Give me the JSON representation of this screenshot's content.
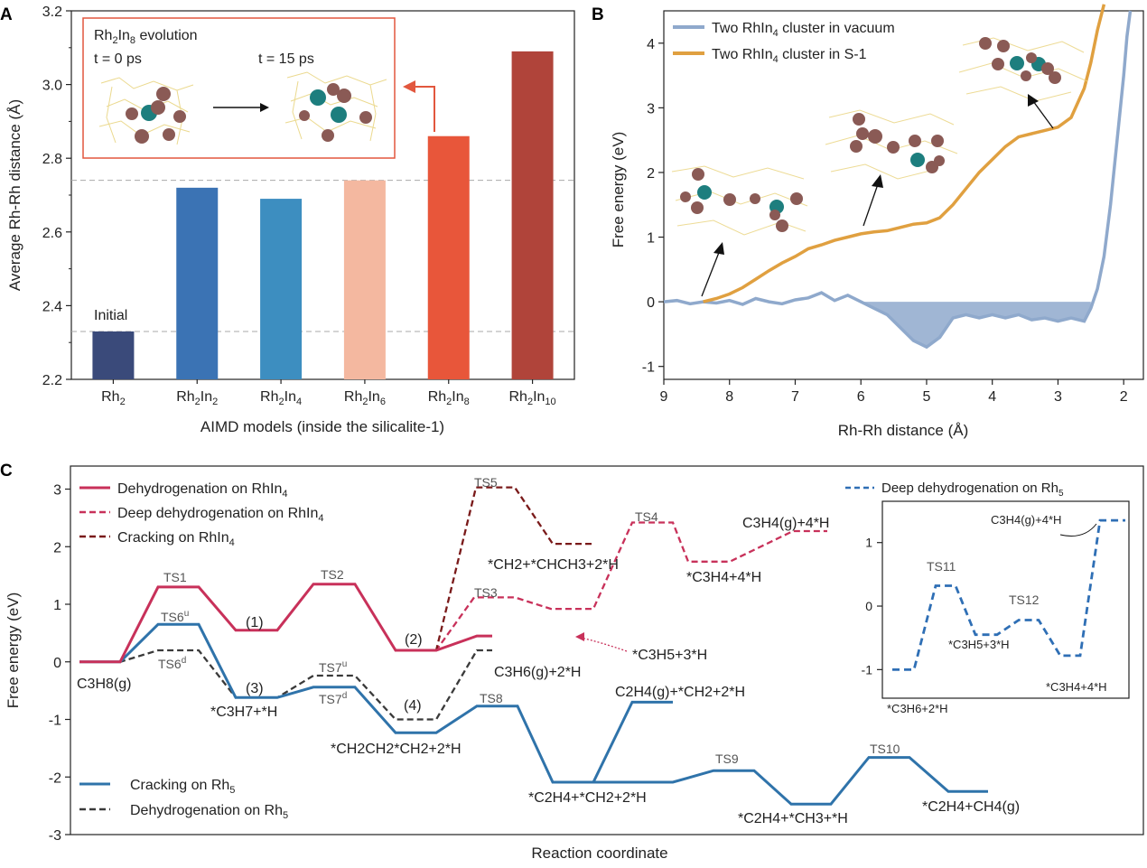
{
  "chart_data": [
    {
      "panel": "A",
      "type": "bar",
      "xlabel": "AIMD models (inside the silicalite-1)",
      "ylabel": "Average Rh-Rh distance (Å)",
      "ylim": [
        2.2,
        3.2
      ],
      "yticks": [
        "2.2",
        "2.4",
        "2.6",
        "2.8",
        "3.0",
        "3.2"
      ],
      "categories": [
        {
          "base": "Rh",
          "sub1": "2",
          "mid": "",
          "sub2": ""
        },
        {
          "base": "Rh",
          "sub1": "2",
          "mid": "In",
          "sub2": "2"
        },
        {
          "base": "Rh",
          "sub1": "2",
          "mid": "In",
          "sub2": "4"
        },
        {
          "base": "Rh",
          "sub1": "2",
          "mid": "In",
          "sub2": "6"
        },
        {
          "base": "Rh",
          "sub1": "2",
          "mid": "In",
          "sub2": "8"
        },
        {
          "base": "Rh",
          "sub1": "2",
          "mid": "In",
          "sub2": "10"
        }
      ],
      "values": [
        2.33,
        2.72,
        2.69,
        2.74,
        2.86,
        3.09
      ],
      "colors": [
        "#3a4a7a",
        "#3b73b4",
        "#3d8ec0",
        "#f4b8a0",
        "#e8563a",
        "#b0443a"
      ],
      "reference_lines": [
        2.33,
        2.74
      ],
      "bar_annotation": "Initial",
      "inset": {
        "title_base": "Rh",
        "title_sub1": "2",
        "title_mid": "In",
        "title_sub2": "8",
        "title_tail": " evolution",
        "t0": "t = 0 ps",
        "t1": "t = 15 ps"
      }
    },
    {
      "panel": "B",
      "type": "line",
      "xlabel": "Rh-Rh distance (Å)",
      "ylabel": "Free energy (eV)",
      "xlim": [
        9,
        1.7
      ],
      "ylim": [
        -1.2,
        4.5
      ],
      "xticks": [
        "9",
        "8",
        "7",
        "6",
        "5",
        "4",
        "3",
        "2"
      ],
      "yticks": [
        "-1",
        "0",
        "1",
        "2",
        "3",
        "4"
      ],
      "series": [
        {
          "label_pre": "Two RhIn",
          "label_sub": "4",
          "label_post": " cluster in vacuum",
          "color": "#8fa9cc",
          "x": [
            9.0,
            8.8,
            8.6,
            8.4,
            8.2,
            8.0,
            7.8,
            7.6,
            7.4,
            7.2,
            7.0,
            6.8,
            6.6,
            6.4,
            6.2,
            6.0,
            5.8,
            5.6,
            5.4,
            5.2,
            5.0,
            4.8,
            4.6,
            4.4,
            4.2,
            4.0,
            3.8,
            3.6,
            3.4,
            3.2,
            3.0,
            2.8,
            2.6,
            2.5,
            2.4,
            2.3,
            2.2,
            2.1,
            2.0,
            1.95,
            1.9
          ],
          "y": [
            0.0,
            0.02,
            -0.03,
            0.0,
            -0.02,
            0.02,
            -0.04,
            0.05,
            0.0,
            -0.03,
            0.03,
            0.06,
            0.14,
            0.02,
            0.1,
            0.0,
            -0.1,
            -0.2,
            -0.4,
            -0.6,
            -0.7,
            -0.55,
            -0.25,
            -0.2,
            -0.25,
            -0.2,
            -0.25,
            -0.2,
            -0.28,
            -0.25,
            -0.3,
            -0.25,
            -0.3,
            -0.1,
            0.2,
            0.7,
            1.5,
            2.5,
            3.5,
            4.1,
            4.5
          ]
        },
        {
          "label_pre": "Two RhIn",
          "label_sub": "4",
          "label_post": " cluster in S-1",
          "color": "#e0a040",
          "x": [
            8.4,
            8.2,
            8.0,
            7.8,
            7.6,
            7.4,
            7.2,
            7.0,
            6.8,
            6.6,
            6.4,
            6.2,
            6.0,
            5.8,
            5.6,
            5.4,
            5.2,
            5.0,
            4.8,
            4.6,
            4.4,
            4.2,
            4.0,
            3.8,
            3.6,
            3.4,
            3.2,
            3.0,
            2.8,
            2.6,
            2.5,
            2.4,
            2.3
          ],
          "y": [
            0.0,
            0.05,
            0.12,
            0.22,
            0.35,
            0.48,
            0.6,
            0.7,
            0.82,
            0.88,
            0.95,
            1.0,
            1.05,
            1.08,
            1.1,
            1.15,
            1.2,
            1.22,
            1.3,
            1.5,
            1.75,
            2.0,
            2.2,
            2.4,
            2.55,
            2.6,
            2.65,
            2.7,
            2.85,
            3.3,
            3.7,
            4.2,
            4.6
          ]
        }
      ]
    },
    {
      "panel": "C",
      "type": "line",
      "xlabel": "Reaction coordinate",
      "ylabel": "Free energy (eV)",
      "ylim": [
        -3,
        3.4
      ],
      "yticks": [
        "-3",
        "-2",
        "-1",
        "0",
        "1",
        "2",
        "3"
      ],
      "legend_top": [
        {
          "label_pre": "Dehydrogenation on RhIn",
          "label_sub": "4",
          "color": "#c8315a",
          "dash": "solid"
        },
        {
          "label_pre": "Deep dehydrogenation on RhIn",
          "label_sub": "4",
          "color": "#c8315a",
          "dash": "dashed"
        },
        {
          "label_pre": "Cracking on RhIn",
          "label_sub": "4",
          "color": "#7a1a1a",
          "dash": "dashed"
        }
      ],
      "legend_bottom": [
        {
          "label_pre": "Cracking on Rh",
          "label_sub": "5",
          "color": "#2f73aa",
          "dash": "solid"
        },
        {
          "label_pre": "Dehydrogenation on Rh",
          "label_sub": "5",
          "color": "#3a3a3a",
          "dash": "dashed"
        }
      ],
      "pathways": [
        {
          "name": "Dehydrogenation on RhIn4",
          "levels": [
            0.0,
            1.3,
            0.55,
            1.35,
            0.2,
            0.45
          ]
        },
        {
          "name": "Deep dehydrogenation on RhIn4",
          "levels": [
            0.2,
            1.12,
            0.92,
            2.42,
            1.74,
            2.27
          ]
        },
        {
          "name": "Cracking on RhIn4",
          "levels": [
            0.2,
            3.03,
            2.05
          ]
        },
        {
          "name": "Dehydrogenation on Rh5",
          "levels": [
            0.0,
            0.2,
            -0.62,
            -0.24,
            -1.0,
            0.2
          ]
        },
        {
          "name": "Cracking on Rh5",
          "levels": [
            0.0,
            0.65,
            -0.62,
            -0.44,
            -1.23,
            -0.77,
            -2.09,
            -0.7,
            -2.09,
            -1.89,
            -2.47,
            -1.66,
            -2.25
          ]
        }
      ],
      "labels": {
        "ts1": "TS1",
        "ts2": "TS2",
        "ts3": "TS3",
        "ts4": "TS4",
        "ts5": "TS5",
        "ts6u": "TS6",
        "ts6u_sup": "u",
        "ts6d": "TS6",
        "ts6d_sup": "d",
        "ts7u": "TS7",
        "ts7u_sup": "u",
        "ts7d": "TS7",
        "ts7d_sup": "d",
        "ts8": "TS8",
        "ts9": "TS9",
        "ts10": "TS10",
        "n1": "(1)",
        "n2": "(2)",
        "n3": "(3)",
        "n4": "(4)",
        "c3h8": "C3H8(g)",
        "c3h7": "*C3H7+*H",
        "c3h6": "C3H6(g)+2*H",
        "ch2chch3": "*CH2+*CHCH3+2*H",
        "c3h4": "*C3H4+4*H",
        "c3h4g": "C3H4(g)+4*H",
        "c3h5": "*C3H5+3*H",
        "ch2ch2ch2": "*CH2CH2*CH2+2*H",
        "c2h4ch2": "*C2H4+*CH2+2*H",
        "c2h4g": "C2H4(g)+*CH2+2*H",
        "c2h4ch3": "*C2H4+*CH3+*H",
        "c2h4ch4": "*C2H4+CH4(g)"
      },
      "inset": {
        "legend_pre": "Deep dehydrogenation on Rh",
        "legend_sub": "5",
        "color": "#2f6fb5",
        "yticks": [
          "-1",
          "0",
          "1"
        ],
        "levels": [
          -1.0,
          0.32,
          -0.45,
          -0.22,
          -0.78,
          1.35
        ],
        "labels": {
          "s0": "*C3H6+2*H",
          "ts11": "TS11",
          "s1": "*C3H5+3*H",
          "ts12": "TS12",
          "s2": "*C3H4+4*H",
          "s3": "C3H4(g)+4*H"
        }
      }
    }
  ],
  "panel_letters": [
    "A",
    "B",
    "C"
  ]
}
